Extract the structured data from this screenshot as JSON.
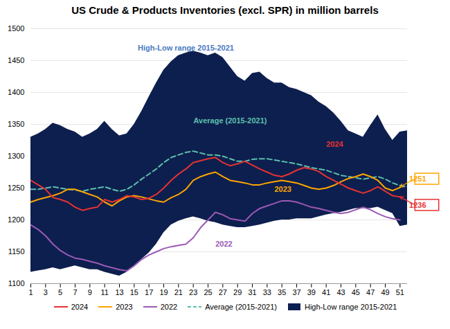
{
  "chart_data": {
    "type": "line",
    "title": "US Crude & Products Inventories (excl. SPR) in million barrels",
    "x": [
      1,
      2,
      3,
      4,
      5,
      6,
      7,
      8,
      9,
      10,
      11,
      12,
      13,
      14,
      15,
      16,
      17,
      18,
      19,
      20,
      21,
      22,
      23,
      24,
      25,
      26,
      27,
      28,
      29,
      30,
      31,
      32,
      33,
      34,
      35,
      36,
      37,
      38,
      39,
      40,
      41,
      42,
      43,
      44,
      45,
      46,
      47,
      48,
      49,
      50,
      51,
      52
    ],
    "xlim": [
      1,
      52
    ],
    "xticks": [
      1,
      3,
      5,
      7,
      9,
      11,
      13,
      15,
      17,
      19,
      21,
      23,
      25,
      27,
      29,
      31,
      33,
      35,
      37,
      39,
      41,
      43,
      45,
      47,
      49,
      51
    ],
    "ylim": [
      1100,
      1500
    ],
    "yticks": [
      1100,
      1150,
      1200,
      1250,
      1300,
      1350,
      1400,
      1450,
      1500
    ],
    "grid": true,
    "legend": "bottom",
    "series": [
      {
        "name": "2024",
        "type": "line",
        "color": "#e63232",
        "line_style": "solid",
        "values": [
          1262,
          1255,
          1248,
          1235,
          1232,
          1228,
          1220,
          1215,
          1218,
          1220,
          1232,
          1228,
          1232,
          1238,
          1236,
          1232,
          1234,
          1240,
          1250,
          1262,
          1272,
          1280,
          1290,
          1293,
          1296,
          1298,
          1290,
          1285,
          1288,
          1292,
          1286,
          1280,
          1275,
          1270,
          1268,
          1272,
          1278,
          1282,
          1280,
          1276,
          1268,
          1262,
          1256,
          1250,
          1246,
          1242,
          1246,
          1252,
          1245,
          1238,
          1236,
          null
        ]
      },
      {
        "name": "2023",
        "type": "line",
        "color": "#ffa500",
        "line_style": "solid",
        "values": [
          1228,
          1232,
          1235,
          1238,
          1242,
          1248,
          1248,
          1244,
          1240,
          1236,
          1228,
          1222,
          1230,
          1236,
          1238,
          1236,
          1233,
          1230,
          1228,
          1235,
          1240,
          1248,
          1262,
          1268,
          1272,
          1275,
          1268,
          1262,
          1260,
          1258,
          1255,
          1255,
          1258,
          1260,
          1262,
          1260,
          1258,
          1254,
          1250,
          1248,
          1250,
          1254,
          1260,
          1265,
          1268,
          1272,
          1268,
          1262,
          1250,
          1246,
          1251,
          null
        ]
      },
      {
        "name": "2022",
        "type": "line",
        "color": "#9b59b6",
        "line_style": "solid",
        "values": [
          1192,
          1185,
          1175,
          1162,
          1152,
          1145,
          1140,
          1138,
          1135,
          1132,
          1128,
          1125,
          1122,
          1120,
          1128,
          1138,
          1145,
          1150,
          1155,
          1158,
          1160,
          1162,
          1172,
          1188,
          1200,
          1212,
          1208,
          1202,
          1200,
          1198,
          1210,
          1218,
          1222,
          1226,
          1230,
          1230,
          1228,
          1224,
          1220,
          1218,
          1215,
          1212,
          1210,
          1212,
          1216,
          1220,
          1216,
          1210,
          1205,
          1202,
          1200,
          null
        ]
      },
      {
        "name": "Average (2015-2021)",
        "type": "line",
        "color": "#5dbfae",
        "line_style": "dashed",
        "values": [
          1248,
          1248,
          1250,
          1252,
          1250,
          1248,
          1247,
          1245,
          1248,
          1250,
          1252,
          1248,
          1245,
          1248,
          1255,
          1264,
          1272,
          1280,
          1290,
          1298,
          1302,
          1306,
          1308,
          1305,
          1302,
          1302,
          1300,
          1296,
          1292,
          1292,
          1295,
          1296,
          1296,
          1294,
          1292,
          1290,
          1288,
          1285,
          1282,
          1280,
          1278,
          1274,
          1270,
          1268,
          1266,
          1264,
          1266,
          1268,
          1264,
          1258,
          1254,
          1252
        ]
      },
      {
        "name": "High-Low range 2015-2021",
        "type": "area",
        "color": "#0d1f4e",
        "low": [
          1118,
          1120,
          1122,
          1125,
          1122,
          1125,
          1128,
          1125,
          1122,
          1122,
          1118,
          1115,
          1112,
          1118,
          1128,
          1138,
          1148,
          1162,
          1180,
          1192,
          1198,
          1202,
          1205,
          1202,
          1198,
          1196,
          1192,
          1190,
          1188,
          1188,
          1190,
          1192,
          1195,
          1198,
          1200,
          1200,
          1202,
          1202,
          1202,
          1205,
          1208,
          1210,
          1212,
          1215,
          1218,
          1218,
          1218,
          1220,
          1215,
          1210,
          1190,
          1192
        ],
        "high": [
          1330,
          1335,
          1342,
          1352,
          1348,
          1342,
          1338,
          1330,
          1335,
          1342,
          1355,
          1342,
          1332,
          1335,
          1350,
          1370,
          1393,
          1415,
          1435,
          1448,
          1458,
          1462,
          1465,
          1462,
          1458,
          1462,
          1455,
          1440,
          1425,
          1418,
          1430,
          1432,
          1422,
          1415,
          1415,
          1408,
          1405,
          1400,
          1395,
          1385,
          1378,
          1368,
          1355,
          1340,
          1335,
          1330,
          1348,
          1365,
          1342,
          1325,
          1338,
          1340
        ]
      }
    ],
    "annotations": [
      {
        "text": "High-Low range 2015-2021",
        "x": 22,
        "y": 1470,
        "color": "#4a7abf"
      },
      {
        "text": "Average (2015-2021)",
        "x": 28,
        "y": 1355,
        "color": "#5dbfae"
      },
      {
        "text": "2024",
        "x": 41,
        "y": 1318,
        "color": "#e63232"
      },
      {
        "text": "2023",
        "x": 34,
        "y": 1248,
        "color": "#ffa500"
      },
      {
        "text": "2022",
        "x": 26,
        "y": 1162,
        "color": "#9b59b6"
      }
    ],
    "callouts": [
      {
        "label": "1251",
        "x": 51,
        "y": 1251,
        "color": "#ffa500"
      },
      {
        "label": "1236",
        "x": 51,
        "y": 1236,
        "color": "#e63232"
      }
    ]
  }
}
